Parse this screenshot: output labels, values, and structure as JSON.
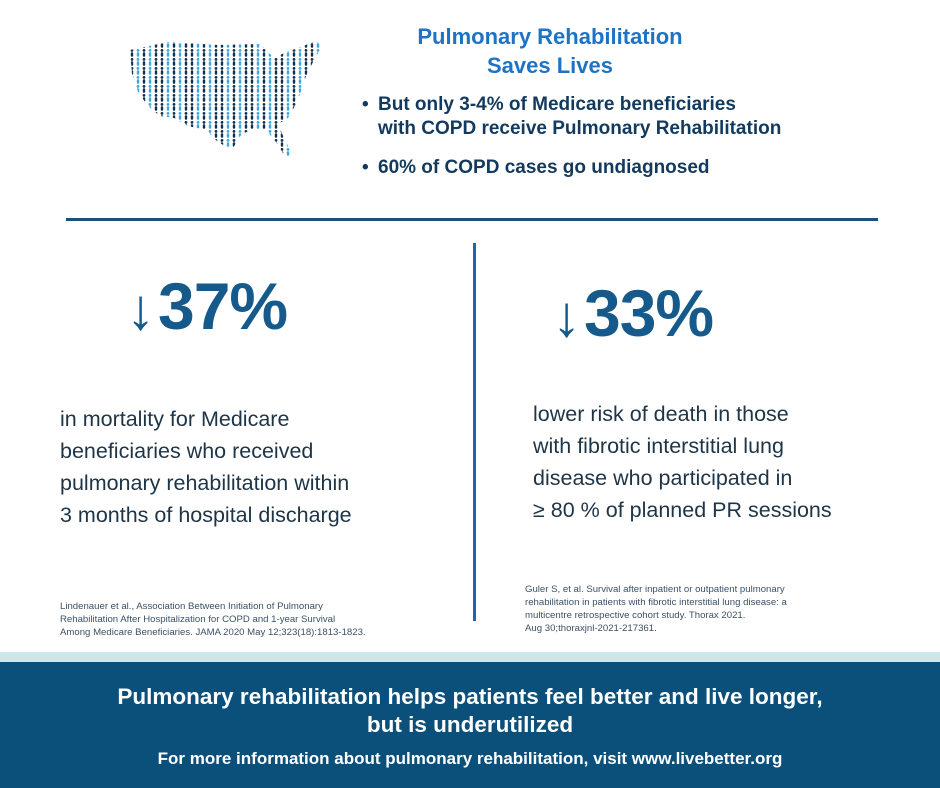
{
  "header": {
    "title_line1": "Pulmonary Rehabilitation",
    "title_line2": "Saves Lives",
    "bullets": [
      {
        "line1": "But only 3-4% of Medicare beneficiaries",
        "line2": "with COPD receive Pulmonary Rehabilitation"
      },
      {
        "line1": "60% of COPD cases go undiagnosed"
      }
    ]
  },
  "map": {
    "icon": "usa-people-map-icon"
  },
  "stats": {
    "left": {
      "arrow": "↓",
      "value": "37%",
      "description": [
        "in mortality for Medicare",
        "beneficiaries who received",
        "pulmonary rehabilitation within",
        "3 months of hospital discharge"
      ],
      "citation": [
        "Lindenauer et al., Association Between Initiation of Pulmonary",
        "Rehabilitation After Hospitalization for COPD and 1-year Survival",
        "Among Medicare Beneficiaries. JAMA 2020 May 12;323(18):1813-1823."
      ]
    },
    "right": {
      "arrow": "↓",
      "value": "33%",
      "description": [
        "lower risk of death in those",
        "with fibrotic interstitial lung",
        "disease who participated in",
        "≥ 80 % of planned PR sessions"
      ],
      "citation": [
        "Guler S, et al. Survival after inpatient or outpatient pulmonary",
        "rehabilitation in patients with fibrotic interstitial lung disease: a",
        "multicentre retrospective cohort study. Thorax 2021.",
        "Aug 30;thoraxjnl-2021-217361."
      ]
    }
  },
  "footer": {
    "headline_line1": "Pulmonary rehabilitation helps patients feel better and live longer,",
    "headline_line2": "but is underutilized",
    "note": "For more information about pulmonary rehabilitation, visit www.livebetter.org"
  },
  "colors": {
    "title_blue": "#1f73c4",
    "dark_navy": "#123a5e",
    "stat_blue": "#155a8a",
    "footer_bg": "#0b4f7b",
    "map_light": "#3fa6e0",
    "map_dark": "#10304f"
  }
}
